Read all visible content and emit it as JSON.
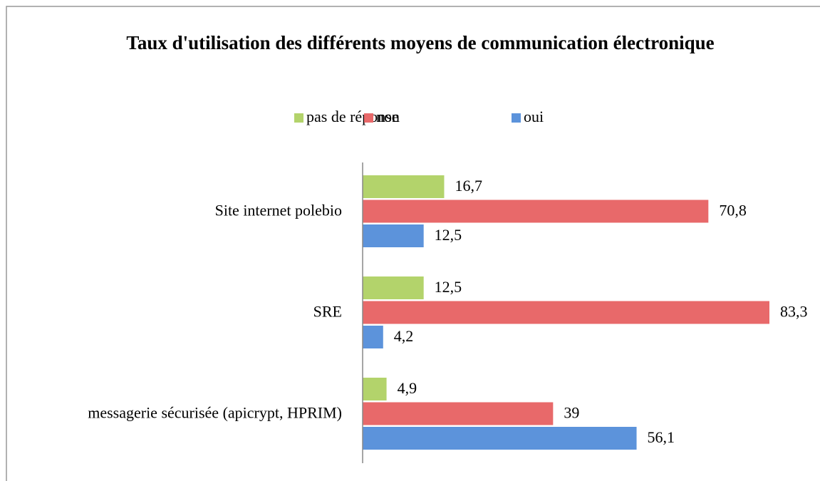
{
  "chart_data": {
    "type": "hbar",
    "title": "Taux d'utilisation des différents moyens de communication électronique",
    "categories": [
      "Site internet polebio",
      "SRE",
      "messagerie sécurisée (apicrypt, HPRIM)"
    ],
    "series": [
      {
        "name": "pas de réponse",
        "color": "#b3d36b",
        "values": [
          16.7,
          12.5,
          4.9
        ],
        "value_labels": [
          "16,7",
          "12,5",
          "4,9"
        ]
      },
      {
        "name": "non",
        "color": "#e8696a",
        "values": [
          70.8,
          83.3,
          39
        ],
        "value_labels": [
          "70,8",
          "83,3",
          "39"
        ]
      },
      {
        "name": "oui",
        "color": "#5c93db",
        "values": [
          12.5,
          4.2,
          56.1
        ],
        "value_labels": [
          "12,5",
          "4,2",
          "56,1"
        ]
      }
    ],
    "legend": "top"
  }
}
